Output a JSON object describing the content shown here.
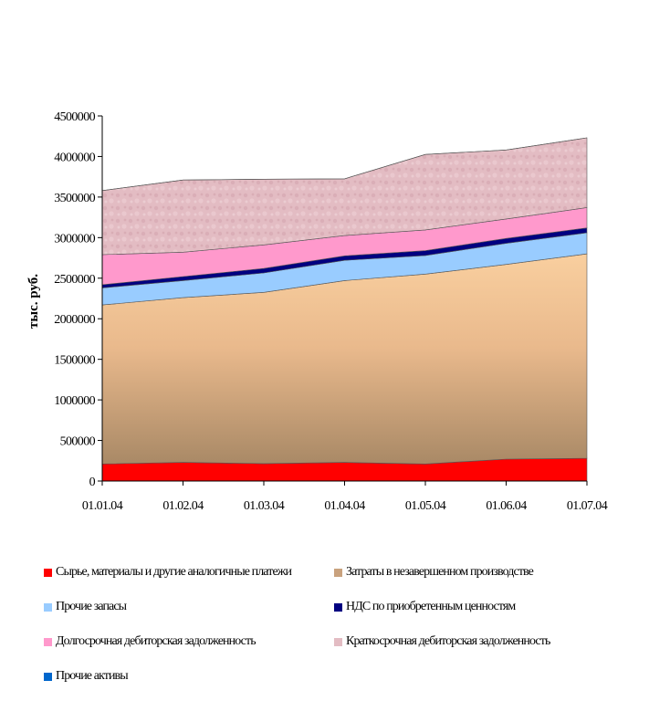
{
  "chart_data": {
    "type": "area",
    "stacked": true,
    "title": "",
    "xlabel": "",
    "ylabel": "тыс. руб.",
    "ylim": [
      0,
      4500000
    ],
    "yticks": [
      "0",
      "500000",
      "1000000",
      "1500000",
      "2000000",
      "2500000",
      "3000000",
      "3500000",
      "4000000",
      "4500000"
    ],
    "categories": [
      "01.01.04",
      "01.02.04",
      "01.03.04",
      "01.04.04",
      "01.05.04",
      "01.06.04",
      "01.07.04"
    ],
    "series": [
      {
        "name": "Сырье, материалы и другие аналогичные платежи",
        "color": "#ff0000",
        "values": [
          210000,
          230000,
          215000,
          230000,
          210000,
          270000,
          280000
        ]
      },
      {
        "name": "Затраты в незавершенном производстве",
        "color": "#d4a77a",
        "values": [
          1960000,
          2030000,
          2110000,
          2240000,
          2340000,
          2400000,
          2520000
        ]
      },
      {
        "name": "Прочие запасы",
        "color": "#99ccff",
        "values": [
          210000,
          210000,
          240000,
          250000,
          230000,
          260000,
          260000
        ]
      },
      {
        "name": "НДС по приобретенным ценностям",
        "color": "#000080",
        "values": [
          40000,
          50000,
          55000,
          55000,
          60000,
          60000,
          60000
        ]
      },
      {
        "name": "Долгосрочная дебиторская задолженность",
        "color": "#ff99cc",
        "values": [
          370000,
          300000,
          290000,
          250000,
          255000,
          240000,
          250000
        ]
      },
      {
        "name": "Краткосрочная дебиторская задолженность",
        "color": "#e0b4be",
        "values": [
          790000,
          890000,
          810000,
          700000,
          930000,
          850000,
          860000
        ]
      },
      {
        "name": "Прочие активы",
        "color": "#0066cc",
        "values": [
          0,
          0,
          0,
          0,
          0,
          0,
          0
        ]
      }
    ],
    "legend_position": "bottom",
    "grid": false
  }
}
